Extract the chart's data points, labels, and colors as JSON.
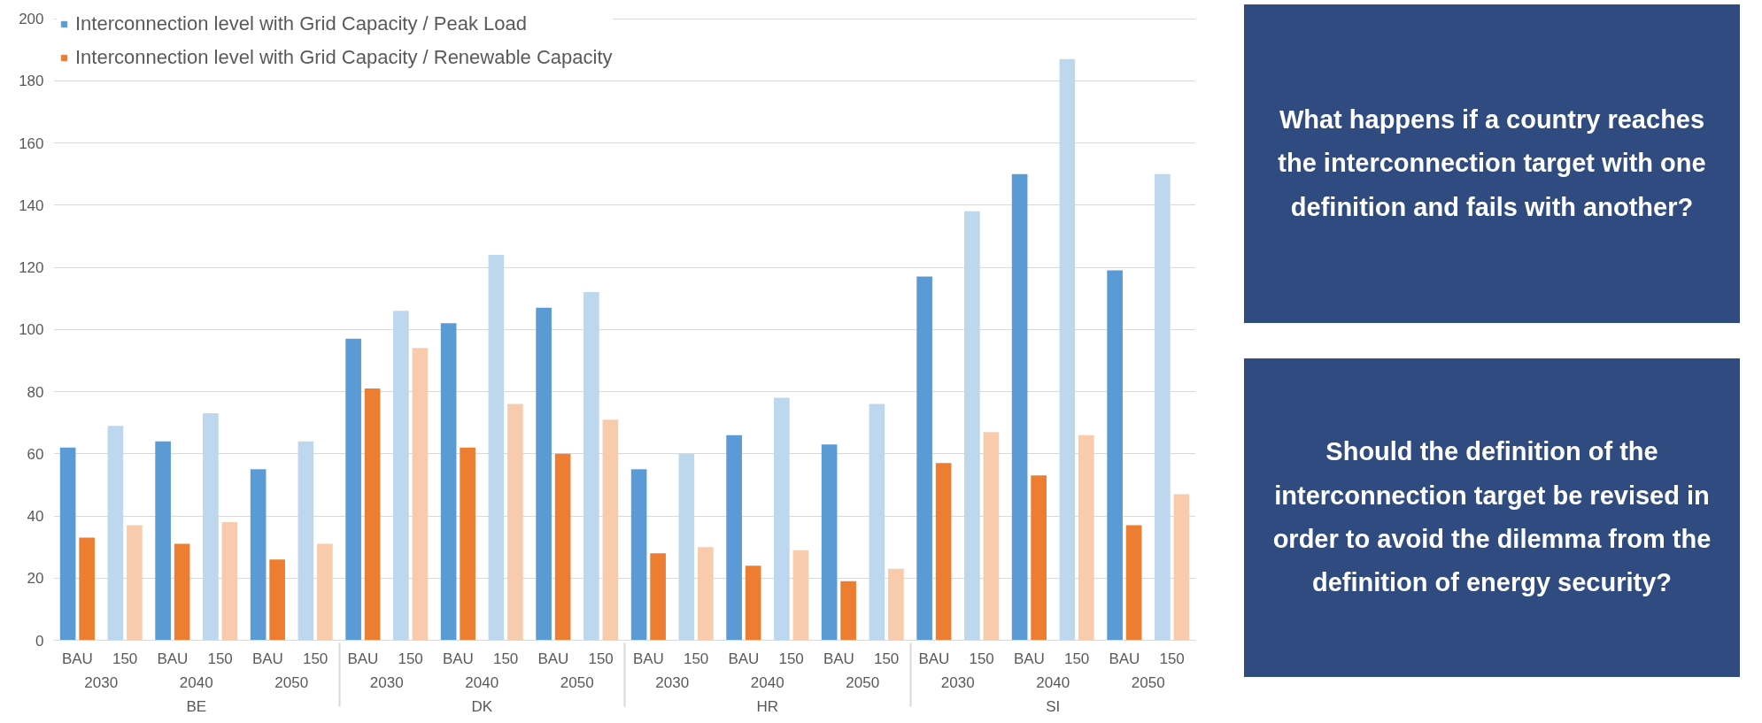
{
  "chart_data": {
    "type": "bar",
    "categories": [
      "BAU",
      "150",
      "BAU",
      "150",
      "BAU",
      "150",
      "BAU",
      "150",
      "BAU",
      "150",
      "BAU",
      "150",
      "BAU",
      "150",
      "BAU",
      "150",
      "BAU",
      "150",
      "BAU",
      "150",
      "BAU",
      "150",
      "BAU",
      "150"
    ],
    "series": [
      {
        "name": "Interconnection level with Grid Capacity / Peak Load",
        "color": "#5b9bd5",
        "colors": [
          "#5b9bd5",
          "#bdd7ee",
          "#5b9bd5",
          "#bdd7ee",
          "#5b9bd5",
          "#bdd7ee",
          "#5b9bd5",
          "#bdd7ee",
          "#5b9bd5",
          "#bdd7ee",
          "#5b9bd5",
          "#bdd7ee",
          "#5b9bd5",
          "#bdd7ee",
          "#5b9bd5",
          "#bdd7ee",
          "#5b9bd5",
          "#bdd7ee",
          "#5b9bd5",
          "#bdd7ee",
          "#5b9bd5",
          "#bdd7ee",
          "#5b9bd5",
          "#bdd7ee"
        ],
        "values": [
          62,
          69,
          64,
          73,
          55,
          64,
          97,
          106,
          102,
          124,
          107,
          112,
          55,
          60,
          66,
          78,
          63,
          76,
          117,
          138,
          150,
          187,
          119,
          150
        ]
      },
      {
        "name": "Interconnection level with Grid Capacity / Renewable Capacity",
        "color": "#ed7d31",
        "colors": [
          "#ed7d31",
          "#f8cbad",
          "#ed7d31",
          "#f8cbad",
          "#ed7d31",
          "#f8cbad",
          "#ed7d31",
          "#f8cbad",
          "#ed7d31",
          "#f8cbad",
          "#ed7d31",
          "#f8cbad",
          "#ed7d31",
          "#f8cbad",
          "#ed7d31",
          "#f8cbad",
          "#ed7d31",
          "#f8cbad",
          "#ed7d31",
          "#f8cbad",
          "#ed7d31",
          "#f8cbad",
          "#ed7d31",
          "#f8cbad"
        ],
        "values": [
          33,
          37,
          31,
          38,
          26,
          31,
          81,
          94,
          62,
          76,
          60,
          71,
          28,
          30,
          24,
          29,
          19,
          23,
          57,
          67,
          53,
          66,
          37,
          47
        ]
      }
    ],
    "annotations": [
      "2030",
      "2040",
      "2050",
      "2030",
      "2040",
      "2050",
      "2030",
      "2040",
      "2050",
      "2030",
      "2040",
      "2050",
      "BE",
      "DK",
      "HR",
      "SI",
      "What happens if a country reaches the interconnection target with one definition and fails with another?",
      "Should the definition of the interconnection target be revised in order to avoid the dilemma from the definition of energy security?"
    ],
    "ylim": [
      0,
      200
    ],
    "yticks": [
      0,
      20,
      40,
      60,
      80,
      100,
      120,
      140,
      160,
      180,
      200
    ],
    "grid": "y",
    "legend": "top left"
  }
}
